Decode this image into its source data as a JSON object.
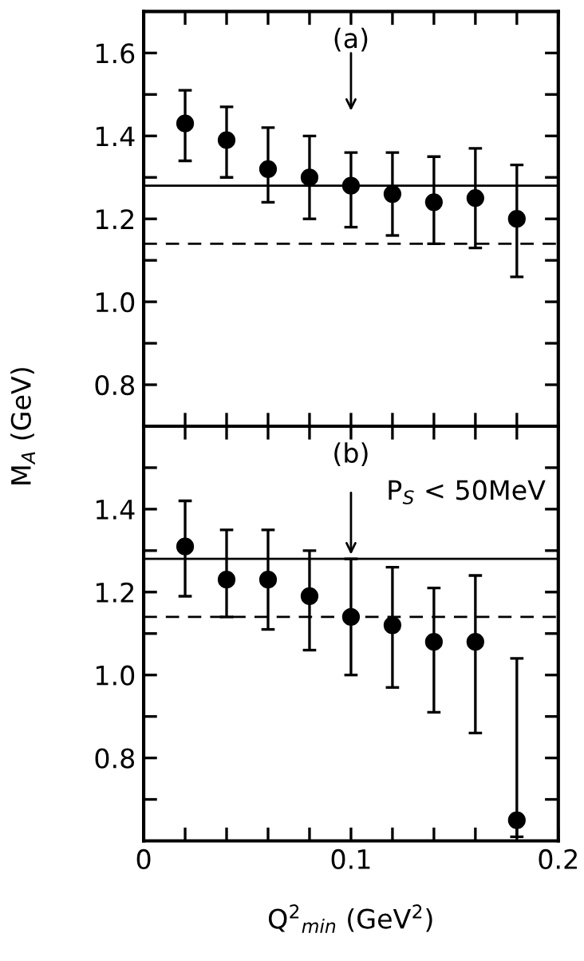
{
  "chart_data": [
    {
      "type": "scatter",
      "ylabel": "M$_{A}$ (GeV)",
      "annotations": [
        "(a)"
      ],
      "x": [
        0.02,
        0.04,
        0.06,
        0.08,
        0.1,
        0.12,
        0.14,
        0.16,
        0.18
      ],
      "series": [
        {
          "color": "#000000",
          "values": [
            1.43,
            1.39,
            1.32,
            1.3,
            1.28,
            1.26,
            1.24,
            1.25,
            1.2
          ],
          "errors": [
            [
              1.34,
              1.51
            ],
            [
              1.3,
              1.47
            ],
            [
              1.24,
              1.42
            ],
            [
              1.2,
              1.4
            ],
            [
              1.18,
              1.36
            ],
            [
              1.16,
              1.36
            ],
            [
              1.14,
              1.35
            ],
            [
              1.13,
              1.37
            ],
            [
              1.06,
              1.33
            ]
          ]
        }
      ],
      "xlim": [
        0,
        0.2
      ],
      "ylim": [
        0.7,
        1.7
      ],
      "xticks": [
        {
          "value": 0,
          "label": null
        },
        {
          "value": 0.02,
          "label": null
        },
        {
          "value": 0.04,
          "label": null
        },
        {
          "value": 0.06,
          "label": null
        },
        {
          "value": 0.08,
          "label": null
        },
        {
          "value": 0.1,
          "label": null
        },
        {
          "value": 0.12,
          "label": null
        },
        {
          "value": 0.14,
          "label": null
        },
        {
          "value": 0.16,
          "label": null
        },
        {
          "value": 0.18,
          "label": null
        },
        {
          "value": 0.2,
          "label": null
        }
      ],
      "yticks": [
        0.8,
        {
          "value": 0.9,
          "label": null
        },
        {
          "value": 1.0,
          "label": "1.0"
        },
        {
          "value": 1.1,
          "label": null
        },
        1.2,
        {
          "value": 1.3,
          "label": null
        },
        1.4,
        {
          "value": 1.5,
          "label": null
        },
        1.6
      ],
      "tick_labels": "y",
      "marker": "circle",
      "grid": false,
      "legend": false,
      "ref_lines": [
        {
          "axis": "y",
          "value": 1.28,
          "color": "#000000",
          "line_style": "solid"
        },
        {
          "axis": "y",
          "value": 1.14,
          "color": "#000000",
          "line_style": "dashed"
        }
      ]
    },
    {
      "type": "scatter",
      "xlabel": "Q$^{2}$$_{min}$ (GeV$^{2}$)",
      "annotations": [
        "(b)",
        "P$_{S}$ < 50MeV"
      ],
      "x": [
        0.02,
        0.04,
        0.06,
        0.08,
        0.1,
        0.12,
        0.14,
        0.16,
        0.18
      ],
      "series": [
        {
          "color": "#000000",
          "values": [
            1.31,
            1.23,
            1.23,
            1.19,
            1.14,
            1.12,
            1.08,
            1.08,
            0.65
          ],
          "errors": [
            [
              1.19,
              1.42
            ],
            [
              1.14,
              1.35
            ],
            [
              1.11,
              1.35
            ],
            [
              1.06,
              1.3
            ],
            [
              1.0,
              1.28
            ],
            [
              0.97,
              1.26
            ],
            [
              0.91,
              1.21
            ],
            [
              0.86,
              1.24
            ],
            [
              0.61,
              1.04
            ]
          ]
        }
      ],
      "xlim": [
        0,
        0.2
      ],
      "ylim": [
        0.6,
        1.6
      ],
      "xticks": [
        0,
        {
          "value": 0.02,
          "label": null
        },
        {
          "value": 0.04,
          "label": null
        },
        {
          "value": 0.06,
          "label": null
        },
        {
          "value": 0.08,
          "label": null
        },
        0.1,
        {
          "value": 0.12,
          "label": null
        },
        {
          "value": 0.14,
          "label": null
        },
        {
          "value": 0.16,
          "label": null
        },
        {
          "value": 0.18,
          "label": null
        },
        0.2
      ],
      "yticks": [
        {
          "value": 0.7,
          "label": null
        },
        0.8,
        {
          "value": 0.9,
          "label": null
        },
        {
          "value": 1.0,
          "label": "1.0"
        },
        {
          "value": 1.1,
          "label": null
        },
        1.2,
        {
          "value": 1.3,
          "label": null
        },
        1.4,
        {
          "value": 1.5,
          "label": null
        }
      ],
      "marker": "circle",
      "grid": false,
      "legend": false,
      "ref_lines": [
        {
          "axis": "y",
          "value": 1.28,
          "color": "#000000",
          "line_style": "solid"
        },
        {
          "axis": "y",
          "value": 1.14,
          "color": "#000000",
          "line_style": "dashed"
        }
      ]
    }
  ]
}
